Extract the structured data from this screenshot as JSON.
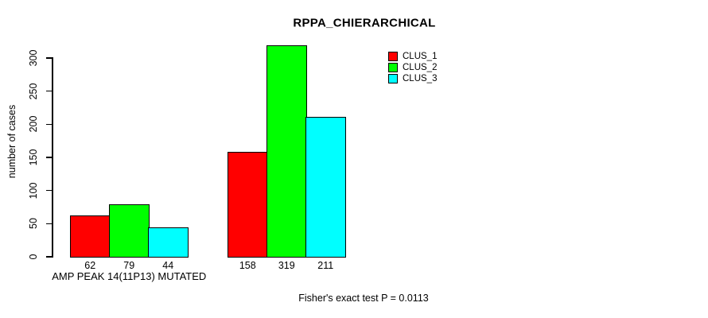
{
  "chart_data": {
    "type": "bar",
    "grouped": true,
    "title": "RPPA_CHIERARCHICAL",
    "ylabel": "number of cases",
    "xlabel": "",
    "group_labels": [
      "AMP PEAK 14(11P13) MUTATED",
      ""
    ],
    "series": [
      {
        "name": "CLUS_1",
        "color": "#ff0000",
        "values": [
          62,
          158
        ]
      },
      {
        "name": "CLUS_2",
        "color": "#00ff00",
        "values": [
          79,
          319
        ]
      },
      {
        "name": "CLUS_3",
        "color": "#00ffff",
        "values": [
          44,
          211
        ]
      }
    ],
    "bar_value_labels": [
      [
        62,
        79,
        44
      ],
      [
        158,
        319,
        211
      ]
    ],
    "yticks": [
      0,
      50,
      100,
      150,
      200,
      250,
      300
    ],
    "ylim": [
      0,
      300
    ],
    "grid": false,
    "legend_position": "top-right",
    "annotation": "Fisher's exact test P = 0.0113",
    "axis_color": "#000000",
    "background_color": "#ffffff"
  }
}
